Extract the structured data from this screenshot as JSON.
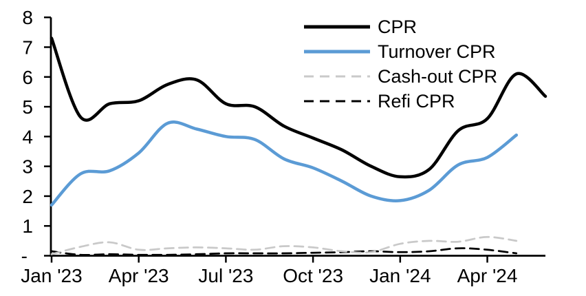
{
  "page": {
    "background": "#FFFFFF"
  },
  "chart_data": {
    "type": "line",
    "title": "",
    "xlabel": "",
    "ylabel": "",
    "grid": false,
    "legend_position": "top-right-inset",
    "categories": [
      "Jan '23",
      "Feb '23",
      "Mar '23",
      "Apr '23",
      "May '23",
      "Jun '23",
      "Jul '23",
      "Aug '23",
      "Sep '23",
      "Oct '23",
      "Nov '23",
      "Dec '23",
      "Jan '24",
      "Feb '24",
      "Mar '24",
      "Apr '24",
      "May '24",
      "Jun '24"
    ],
    "x_tick_labels": [
      "Jan '23",
      "Apr '23",
      "Jul '23",
      "Oct '23",
      "Jan '24",
      "Apr '24"
    ],
    "x_tick_indices": [
      0,
      3,
      6,
      9,
      12,
      15
    ],
    "y_axis": {
      "min": 0,
      "max": 8,
      "tick_step": 1,
      "tick_labels": [
        "-",
        "1",
        "2",
        "3",
        "4",
        "5",
        "6",
        "7",
        "8"
      ]
    },
    "series": [
      {
        "name": "CPR",
        "color": "#000000",
        "style": "solid",
        "width": 4.5,
        "values": [
          7.3,
          4.65,
          5.1,
          5.2,
          5.75,
          5.9,
          5.1,
          5.0,
          4.35,
          3.95,
          3.55,
          3.0,
          2.65,
          2.9,
          4.2,
          4.6,
          6.1,
          5.35
        ]
      },
      {
        "name": "Turnover CPR",
        "color": "#5B9BD5",
        "style": "solid",
        "width": 4.5,
        "values": [
          1.7,
          2.75,
          2.85,
          3.45,
          4.45,
          4.25,
          4.0,
          3.9,
          3.25,
          2.95,
          2.5,
          2.0,
          1.85,
          2.2,
          3.05,
          3.3,
          4.05
        ]
      },
      {
        "name": "Cash-out CPR",
        "color": "#C9C9C9",
        "style": "dashed",
        "width": 2.75,
        "values": [
          0.05,
          0.3,
          0.45,
          0.2,
          0.25,
          0.28,
          0.25,
          0.2,
          0.32,
          0.28,
          0.15,
          0.12,
          0.4,
          0.5,
          0.47,
          0.63,
          0.5
        ]
      },
      {
        "name": "Refi CPR",
        "color": "#000000",
        "style": "dashed",
        "width": 2.75,
        "values": [
          0.15,
          0.03,
          0.05,
          0.03,
          0.03,
          0.05,
          0.08,
          0.08,
          0.08,
          0.1,
          0.12,
          0.15,
          0.12,
          0.15,
          0.25,
          0.2,
          0.08
        ]
      }
    ]
  }
}
